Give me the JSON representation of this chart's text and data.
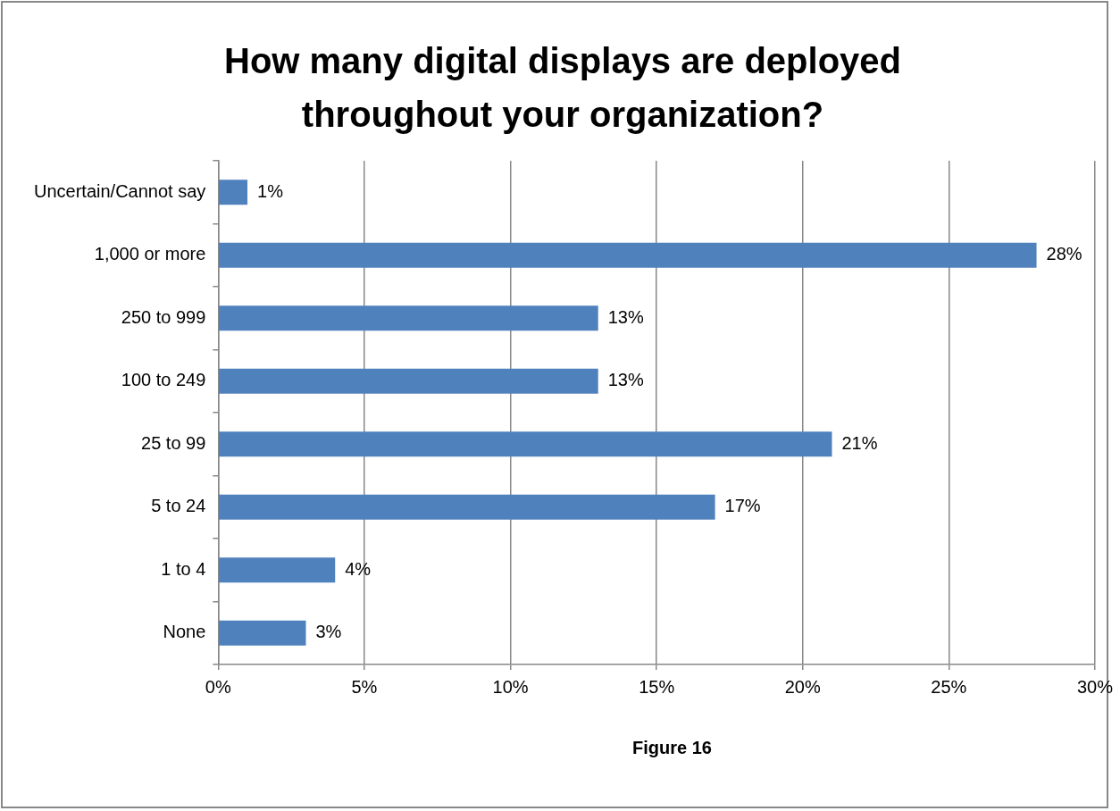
{
  "chart_data": {
    "type": "bar",
    "orientation": "horizontal",
    "title": "How many digital displays are deployed throughout your organization?",
    "categories": [
      "Uncertain/Cannot say",
      "1,000 or more",
      "250 to 999",
      "100 to 249",
      "25 to 99",
      "5 to 24",
      "1 to 4",
      "None"
    ],
    "values": [
      1,
      28,
      13,
      13,
      21,
      17,
      4,
      3
    ],
    "value_labels": [
      "1%",
      "28%",
      "13%",
      "13%",
      "21%",
      "17%",
      "4%",
      "3%"
    ],
    "color": "#4f81bd",
    "xlim": [
      0,
      30
    ],
    "xticks": [
      {
        "value": 0,
        "label": "0%"
      },
      {
        "value": 5,
        "label": "5%"
      },
      {
        "value": 10,
        "label": "10%"
      },
      {
        "value": 15,
        "label": "15%"
      },
      {
        "value": 20,
        "label": "20%"
      },
      {
        "value": 25,
        "label": "25%"
      },
      {
        "value": 30,
        "label": "30%"
      }
    ],
    "grid": "x",
    "legend": false,
    "annotations": [
      "Figure 16"
    ]
  }
}
